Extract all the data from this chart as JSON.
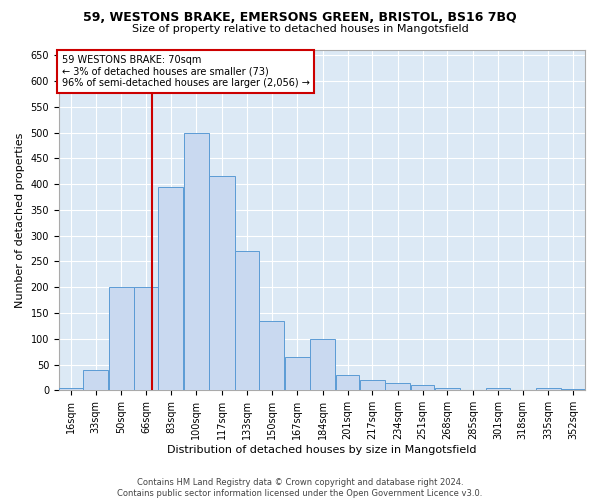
{
  "title_line1": "59, WESTONS BRAKE, EMERSONS GREEN, BRISTOL, BS16 7BQ",
  "title_line2": "Size of property relative to detached houses in Mangotsfield",
  "xlabel": "Distribution of detached houses by size in Mangotsfield",
  "ylabel": "Number of detached properties",
  "footer_line1": "Contains HM Land Registry data © Crown copyright and database right 2024.",
  "footer_line2": "Contains public sector information licensed under the Open Government Licence v3.0.",
  "annotation_line1": "59 WESTONS BRAKE: 70sqm",
  "annotation_line2": "← 3% of detached houses are smaller (73)",
  "annotation_line3": "96% of semi-detached houses are larger (2,056) →",
  "bar_color": "#c9d9f0",
  "bar_edge_color": "#5b9bd5",
  "vline_color": "#cc0000",
  "vline_x": 70,
  "background_color": "#dce9f5",
  "grid_color": "#ffffff",
  "categories": [
    "16sqm",
    "33sqm",
    "50sqm",
    "66sqm",
    "83sqm",
    "100sqm",
    "117sqm",
    "133sqm",
    "150sqm",
    "167sqm",
    "184sqm",
    "201sqm",
    "217sqm",
    "234sqm",
    "251sqm",
    "268sqm",
    "285sqm",
    "301sqm",
    "318sqm",
    "335sqm",
    "352sqm"
  ],
  "bin_edges": [
    8,
    24,
    41,
    58,
    74,
    91,
    108,
    125,
    141,
    158,
    175,
    192,
    208,
    225,
    242,
    258,
    275,
    292,
    308,
    325,
    342,
    358
  ],
  "bar_heights": [
    5,
    40,
    200,
    200,
    395,
    500,
    415,
    270,
    135,
    65,
    100,
    30,
    20,
    15,
    10,
    5,
    0,
    5,
    0,
    5,
    2
  ],
  "ylim": [
    0,
    660
  ],
  "yticks": [
    0,
    50,
    100,
    150,
    200,
    250,
    300,
    350,
    400,
    450,
    500,
    550,
    600,
    650
  ],
  "annotation_box_color": "#ffffff",
  "annotation_box_edge_color": "#cc0000",
  "title_fontsize": 9,
  "subtitle_fontsize": 8,
  "ylabel_fontsize": 8,
  "xlabel_fontsize": 8,
  "tick_fontsize": 7,
  "footer_fontsize": 6
}
